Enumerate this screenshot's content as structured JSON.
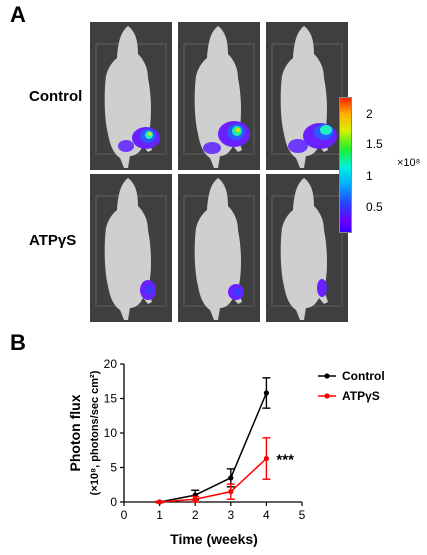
{
  "panel_a_label": "A",
  "panel_b_label": "B",
  "row_labels": {
    "control": "Control",
    "treated": "ATPγS"
  },
  "colorbar": {
    "ticks": [
      "2",
      "1.5",
      "1",
      "0.5"
    ],
    "tick_values": [
      2,
      1.5,
      1,
      0.5
    ],
    "multiplier": "×10⁸",
    "range": [
      0,
      2.3
    ]
  },
  "colors": {
    "control": "#000000",
    "atp": "#ff0000",
    "mouse_bg": "#3f3f3f"
  },
  "chart_data": {
    "type": "line",
    "xlabel": "Time (weeks)",
    "ylabel": "Photon flux",
    "ylabel_units": "(×10⁸, photons/sec cm²)",
    "xlim": [
      0,
      5
    ],
    "ylim": [
      0,
      20
    ],
    "xticks": [
      0,
      1,
      2,
      3,
      4,
      5
    ],
    "yticks": [
      0,
      5,
      10,
      15,
      20
    ],
    "x": [
      1,
      2,
      3,
      4
    ],
    "series": [
      {
        "name": "Control",
        "color": "#000000",
        "values": [
          0,
          1.0,
          3.5,
          15.8
        ],
        "error": [
          0.1,
          0.7,
          1.3,
          2.2
        ]
      },
      {
        "name": "ATPγS",
        "color": "#ff0000",
        "values": [
          0,
          0.4,
          1.5,
          6.3
        ],
        "error": [
          0.1,
          0.4,
          1.1,
          3.0
        ]
      }
    ],
    "annotation": {
      "text": "***",
      "x": 4,
      "y": 6.3
    },
    "legend": "top-right"
  }
}
